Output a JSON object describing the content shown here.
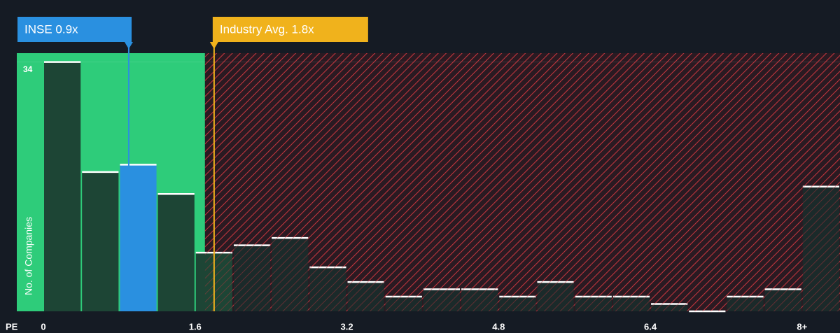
{
  "chart_data": {
    "type": "histogram",
    "xlabel": "PE",
    "ylabel": "No. of Companies",
    "bins": [
      0,
      0.4,
      0.8,
      1.2,
      1.6,
      2.0,
      2.4,
      2.8,
      3.2,
      3.6,
      4.0,
      4.4,
      4.8,
      5.2,
      5.6,
      6.0,
      6.4,
      6.8,
      7.2,
      7.6,
      8.0,
      8.4
    ],
    "values": [
      34,
      19,
      20,
      16,
      8,
      9,
      10,
      6,
      4,
      2,
      3,
      3,
      2,
      4,
      2,
      2,
      1,
      0,
      2,
      3,
      17
    ],
    "colors": [
      "#1d4535",
      "#1d4535",
      "#2a90e0",
      "#1d4535",
      "#1d4535",
      "#1b2a2a",
      "#1b2a2a",
      "#1b2a2a",
      "#1b2a2a",
      "#1b2a2a",
      "#1b2a2a",
      "#1b2a2a",
      "#1b2a2a",
      "#1b2a2a",
      "#1b2a2a",
      "#1b2a2a",
      "#1b2a2a",
      "#1b2a2a",
      "#1b2a2a",
      "#1b2a2a",
      "#1b2a2a"
    ],
    "xlim": [
      0,
      8.4
    ],
    "ylim": [
      0,
      35.2
    ],
    "xticks": [
      0,
      1.6,
      3.2,
      4.8,
      6.4,
      {
        "value": 8.0,
        "label": "8+"
      }
    ],
    "yticks": [
      34
    ],
    "annotations": [
      {
        "text": "INSE 0.9x",
        "x": 0.9,
        "color": "#2a90e0"
      },
      {
        "text": "Industry Avg. 1.8x",
        "x": 1.8,
        "color": "#f0b21c"
      }
    ]
  }
}
